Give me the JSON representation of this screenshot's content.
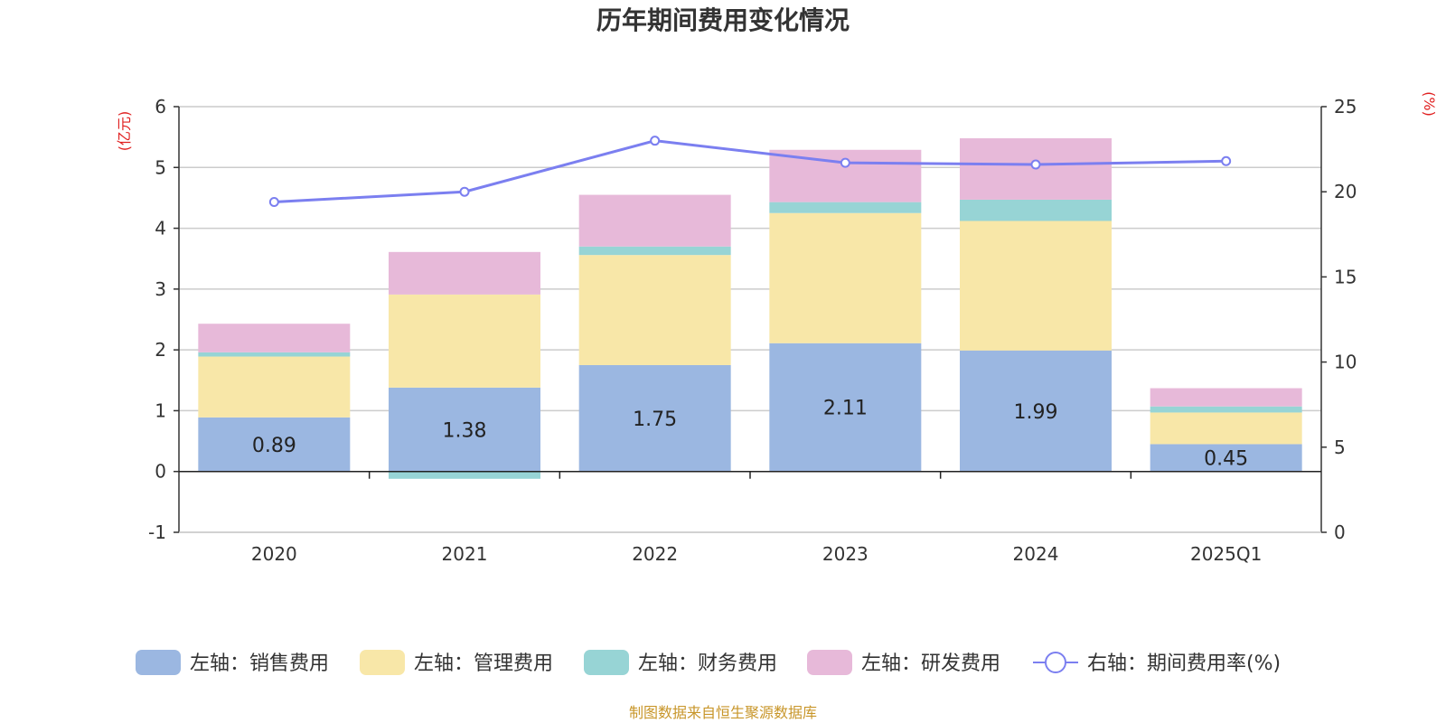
{
  "chart_data": {
    "type": "bar",
    "stacked": true,
    "title": "历年期间费用变化情况",
    "categories": [
      "2020",
      "2021",
      "2022",
      "2023",
      "2024",
      "2025Q1"
    ],
    "left_axis": {
      "unit": "(亿元)",
      "ylim": [
        -1,
        6
      ],
      "ticks": [
        -1,
        0,
        1,
        2,
        3,
        4,
        5,
        6
      ]
    },
    "right_axis": {
      "unit": "(%)",
      "ylim": [
        0,
        25
      ],
      "ticks": [
        0,
        5,
        10,
        15,
        20,
        25
      ]
    },
    "series": [
      {
        "name": "左轴：销售费用",
        "color": "#9bb7e1",
        "values": [
          0.89,
          1.38,
          1.75,
          2.11,
          1.99,
          0.45
        ],
        "labels": [
          "0.89",
          "1.38",
          "1.75",
          "2.11",
          "1.99",
          "0.45"
        ]
      },
      {
        "name": "左轴：管理费用",
        "color": "#f8e7a8",
        "values": [
          1.0,
          1.53,
          1.81,
          2.14,
          2.13,
          0.52
        ]
      },
      {
        "name": "左轴：财务费用",
        "color": "#97d4d5",
        "values": [
          0.07,
          -0.12,
          0.14,
          0.18,
          0.35,
          0.1
        ]
      },
      {
        "name": "左轴：研发费用",
        "color": "#e7b9d9",
        "values": [
          0.47,
          0.7,
          0.85,
          0.86,
          1.01,
          0.3
        ]
      }
    ],
    "line_series": {
      "name": "右轴：期间费用率(%)",
      "color": "#7b7ff0",
      "axis": "right",
      "values": [
        19.4,
        20.0,
        23.0,
        21.7,
        21.6,
        21.8
      ]
    },
    "legend_position": "bottom",
    "grid": true
  },
  "source": "制图数据来自恒生聚源数据库"
}
